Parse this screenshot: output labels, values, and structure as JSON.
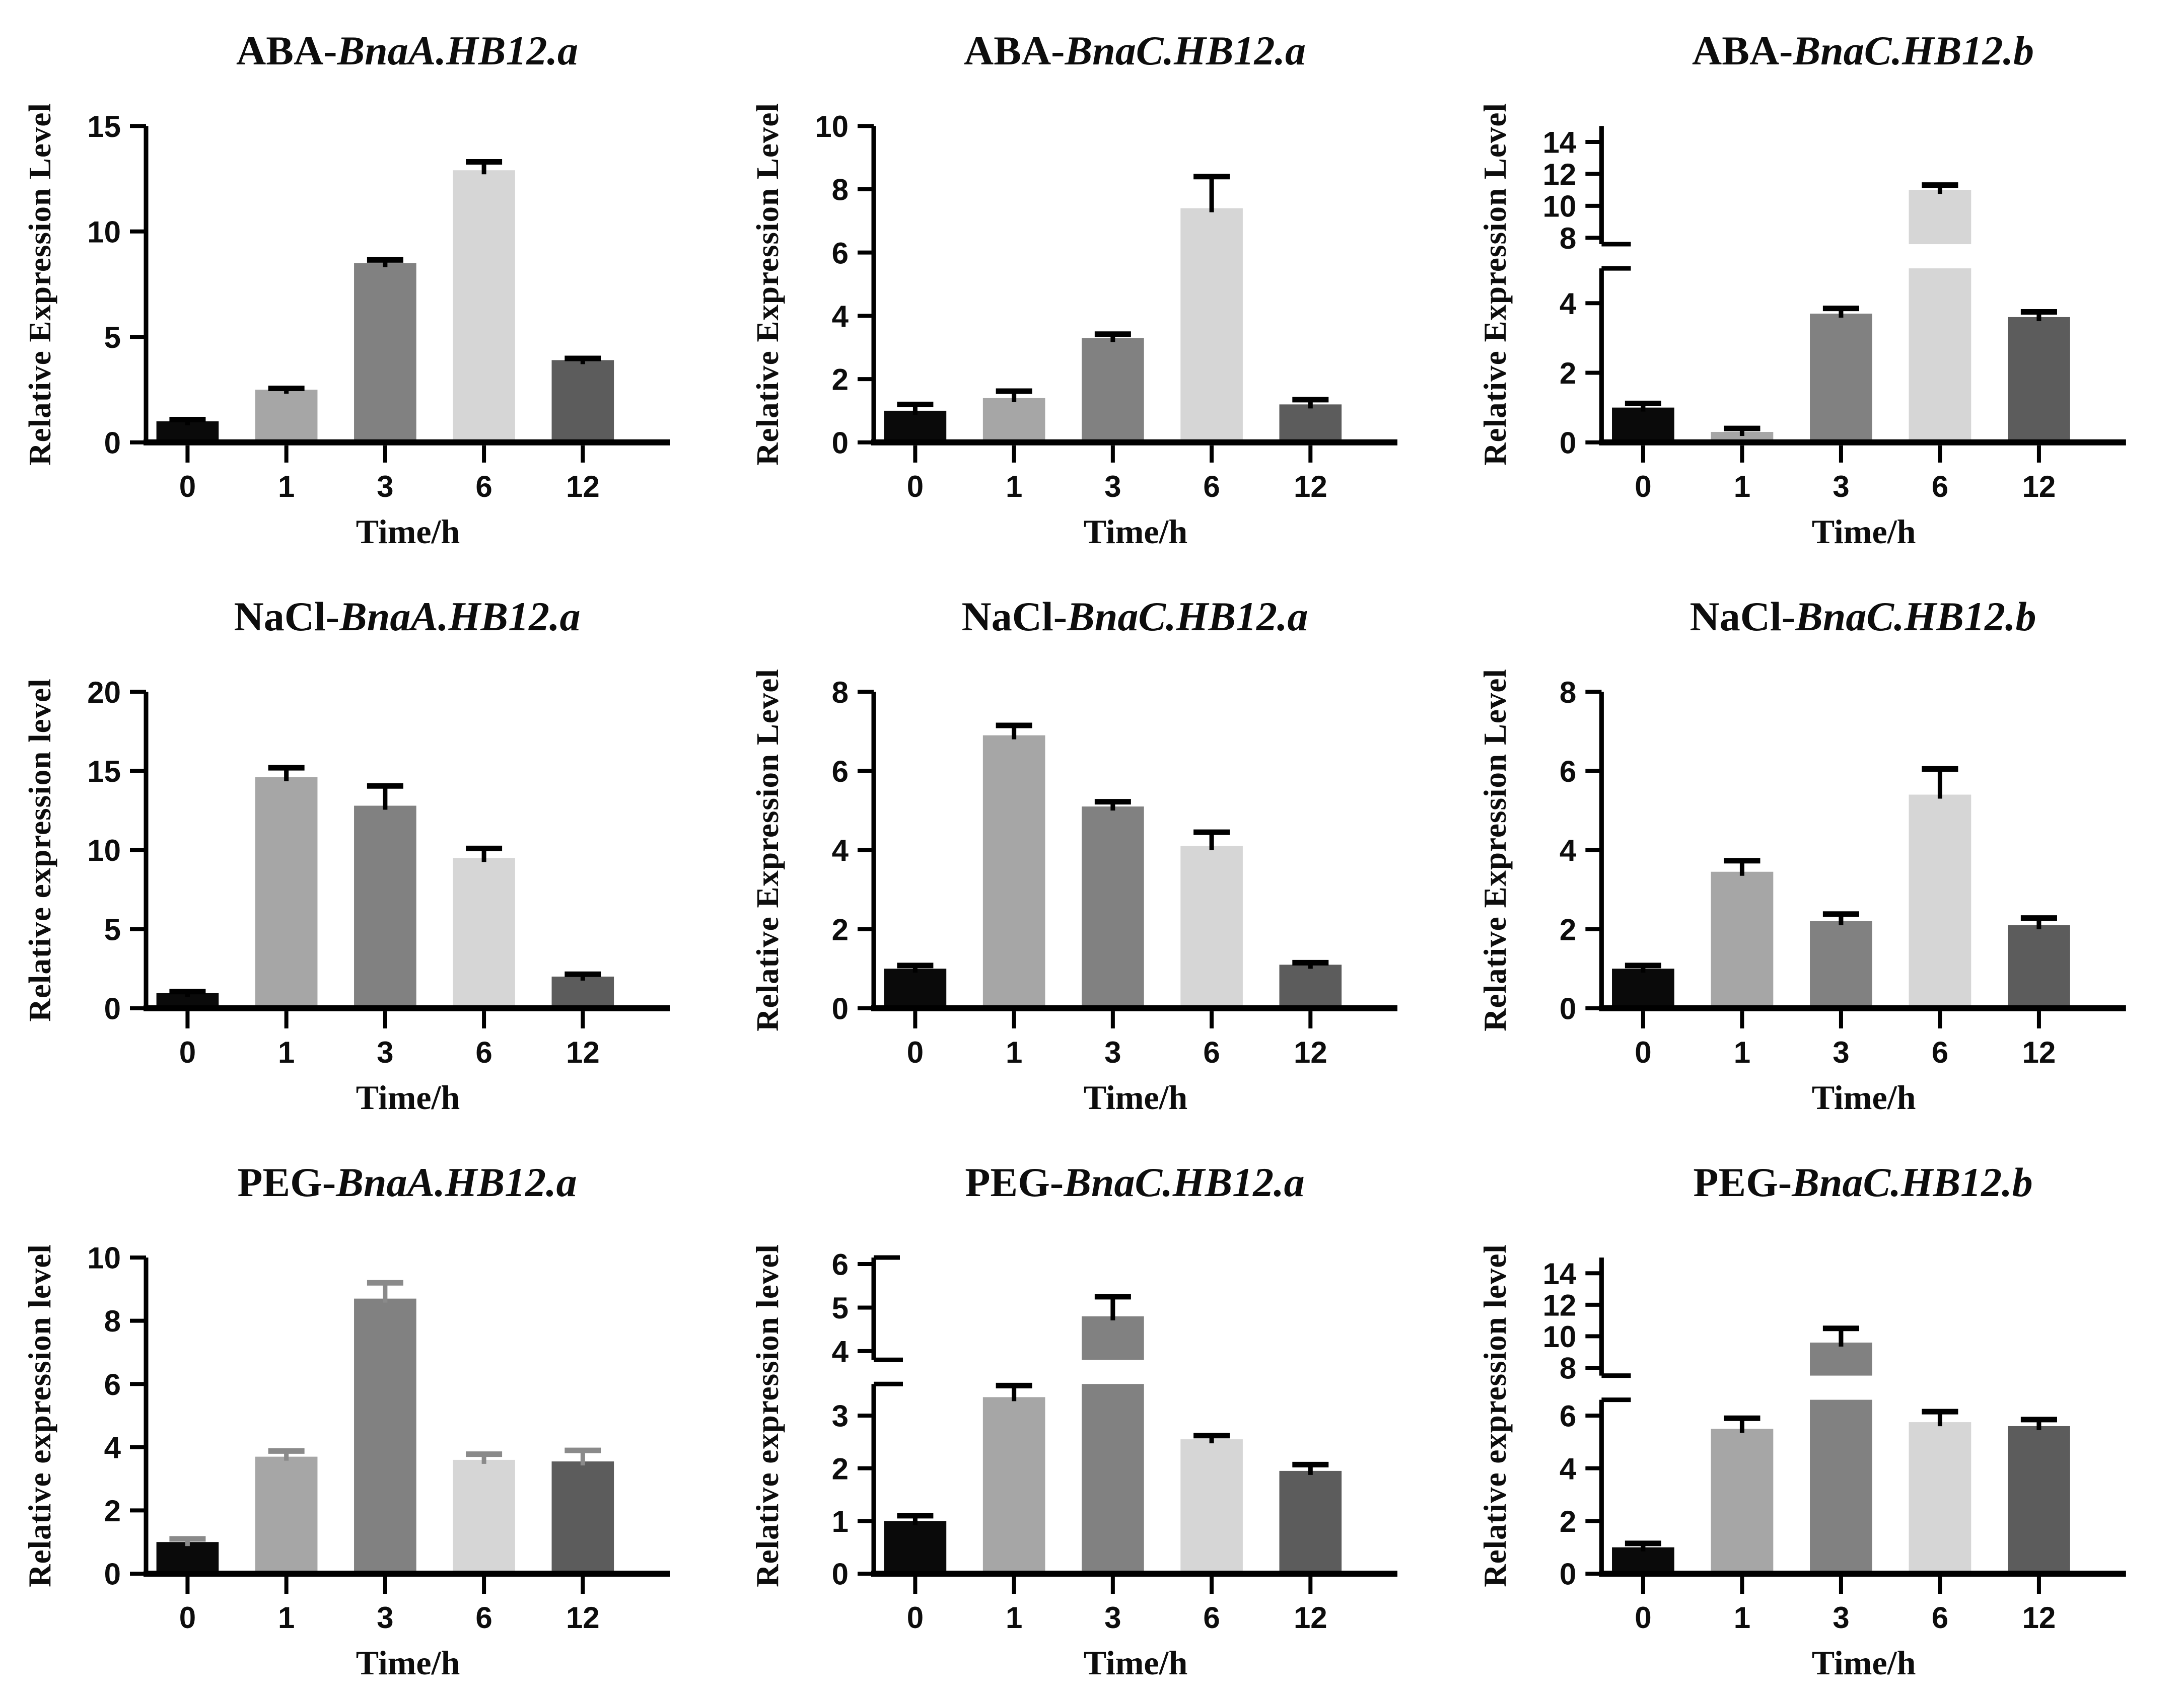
{
  "page": {
    "background": "#ffffff"
  },
  "bar_colors": [
    "#0a0a0a",
    "#a6a6a6",
    "#818181",
    "#d6d6d6",
    "#5c5c5c"
  ],
  "chart_data": [
    {
      "type": "bar",
      "id": "aba-bnaa-hb12-a",
      "title": "ABA-BnaA.HB12.a",
      "title_prefix": "ABA-",
      "title_gene": "BnaA.HB12.a",
      "ylabel": "Relative Expression Level",
      "xlabel": "Time/h",
      "categories": [
        "0",
        "1",
        "3",
        "6",
        "12"
      ],
      "values": [
        1.0,
        2.5,
        8.5,
        12.9,
        3.9
      ],
      "errors": [
        0.08,
        0.06,
        0.15,
        0.4,
        0.08
      ],
      "error_color": "#000000",
      "ylim": [
        0,
        15
      ],
      "grid": false,
      "legend": "none",
      "segments": [
        {
          "domain": [
            0,
            15
          ],
          "ticks": [
            0,
            5,
            10,
            15
          ],
          "frac": 1.0
        }
      ]
    },
    {
      "type": "bar",
      "id": "aba-bnac-hb12-a",
      "title": "ABA-BnaC.HB12.a",
      "title_prefix": "ABA-",
      "title_gene": "BnaC.HB12.a",
      "ylabel": "Relative Expression Level",
      "xlabel": "Time/h",
      "categories": [
        "0",
        "1",
        "3",
        "6",
        "12"
      ],
      "values": [
        1.0,
        1.4,
        3.3,
        7.4,
        1.2
      ],
      "errors": [
        0.2,
        0.22,
        0.12,
        1.0,
        0.15
      ],
      "error_color": "#000000",
      "ylim": [
        0,
        10
      ],
      "grid": false,
      "legend": "none",
      "segments": [
        {
          "domain": [
            0,
            10
          ],
          "ticks": [
            0,
            2,
            4,
            6,
            8,
            10
          ],
          "frac": 1.0
        }
      ]
    },
    {
      "type": "bar",
      "id": "aba-bnac-hb12-b",
      "title": "ABA-BnaC.HB12.b",
      "title_prefix": "ABA-",
      "title_gene": "BnaC.HB12.b",
      "ylabel": "Relative Expression Level",
      "xlabel": "Time/h",
      "categories": [
        "0",
        "1",
        "3",
        "6",
        "12"
      ],
      "values": [
        1.0,
        0.3,
        3.7,
        11.0,
        3.6
      ],
      "errors": [
        0.12,
        0.1,
        0.15,
        0.3,
        0.15
      ],
      "error_color": "#000000",
      "ylim": [
        0,
        15
      ],
      "grid": false,
      "legend": "none",
      "axis_break": true,
      "segments": [
        {
          "domain": [
            0,
            5
          ],
          "ticks": [
            0,
            2,
            4
          ],
          "frac": 0.55
        },
        {
          "domain": [
            7.6,
            15
          ],
          "ticks": [
            8,
            10,
            12,
            14
          ],
          "frac": 0.38
        }
      ]
    },
    {
      "type": "bar",
      "id": "nacl-bnaa-hb12-a",
      "title": "NaCl-BnaA.HB12.a",
      "title_prefix": "NaCl-",
      "title_gene": "BnaA.HB12.a",
      "ylabel": "Relative expression level",
      "xlabel": "Time/h",
      "categories": [
        "0",
        "1",
        "3",
        "6",
        "12"
      ],
      "values": [
        0.95,
        14.6,
        12.8,
        9.5,
        2.0
      ],
      "errors": [
        0.1,
        0.6,
        1.25,
        0.6,
        0.15
      ],
      "error_color": "#000000",
      "ylim": [
        0,
        20
      ],
      "grid": false,
      "legend": "none",
      "segments": [
        {
          "domain": [
            0,
            20
          ],
          "ticks": [
            0,
            5,
            10,
            15,
            20
          ],
          "frac": 1.0
        }
      ]
    },
    {
      "type": "bar",
      "id": "nacl-bnac-hb12-a",
      "title": "NaCl-BnaC.HB12.a",
      "title_prefix": "NaCl-",
      "title_gene": "BnaC.HB12.a",
      "ylabel": "Relative Expression Level",
      "xlabel": "Time/h",
      "categories": [
        "0",
        "1",
        "3",
        "6",
        "12"
      ],
      "values": [
        1.0,
        6.9,
        5.1,
        4.1,
        1.1
      ],
      "errors": [
        0.08,
        0.25,
        0.12,
        0.35,
        0.05
      ],
      "error_color": "#000000",
      "ylim": [
        0,
        8
      ],
      "grid": false,
      "legend": "none",
      "segments": [
        {
          "domain": [
            0,
            8
          ],
          "ticks": [
            0,
            2,
            4,
            6,
            8
          ],
          "frac": 1.0
        }
      ]
    },
    {
      "type": "bar",
      "id": "nacl-bnac-hb12-b",
      "title": "NaCl-BnaC.HB12.b",
      "title_prefix": "NaCl-",
      "title_gene": "BnaC.HB12.b",
      "ylabel": "Relative Expression Level",
      "xlabel": "Time/h",
      "categories": [
        "0",
        "1",
        "3",
        "6",
        "12"
      ],
      "values": [
        1.0,
        3.45,
        2.2,
        5.4,
        2.1
      ],
      "errors": [
        0.08,
        0.28,
        0.18,
        0.65,
        0.18
      ],
      "error_color": "#000000",
      "ylim": [
        0,
        8
      ],
      "grid": false,
      "legend": "none",
      "segments": [
        {
          "domain": [
            0,
            8
          ],
          "ticks": [
            0,
            2,
            4,
            6,
            8
          ],
          "frac": 1.0
        }
      ]
    },
    {
      "type": "bar",
      "id": "peg-bnaa-hb12-a",
      "title": "PEG-BnaA.HB12.a",
      "title_prefix": "PEG-",
      "title_gene": "BnaA.HB12.a",
      "ylabel": "Relative expression level",
      "xlabel": "Time/h",
      "categories": [
        "0",
        "1",
        "3",
        "6",
        "12"
      ],
      "values": [
        1.0,
        3.7,
        8.7,
        3.6,
        3.55
      ],
      "errors": [
        0.1,
        0.18,
        0.5,
        0.18,
        0.35
      ],
      "error_color": "#8a8a8a",
      "ylim": [
        0,
        10
      ],
      "grid": false,
      "legend": "none",
      "segments": [
        {
          "domain": [
            0,
            10
          ],
          "ticks": [
            0,
            2,
            4,
            6,
            8,
            10
          ],
          "frac": 1.0
        }
      ]
    },
    {
      "type": "bar",
      "id": "peg-bnac-hb12-a",
      "title": "PEG-BnaC.HB12.a",
      "title_prefix": "PEG-",
      "title_gene": "BnaC.HB12.a",
      "ylabel": "Relative expression level",
      "xlabel": "Time/h",
      "categories": [
        "0",
        "1",
        "3",
        "6",
        "12"
      ],
      "values": [
        1.0,
        3.35,
        4.8,
        2.55,
        1.95
      ],
      "errors": [
        0.1,
        0.22,
        0.45,
        0.07,
        0.12
      ],
      "error_color": "#000000",
      "ylim": [
        0,
        6
      ],
      "grid": false,
      "legend": "none",
      "axis_break": true,
      "top_cap": true,
      "segments": [
        {
          "domain": [
            0,
            3.6
          ],
          "ticks": [
            0,
            1,
            2,
            3
          ],
          "frac": 0.6
        },
        {
          "domain": [
            3.8,
            6.15
          ],
          "ticks": [
            4,
            5,
            6
          ],
          "frac": 0.34
        }
      ]
    },
    {
      "type": "bar",
      "id": "peg-bnac-hb12-b",
      "title": "PEG-BnaC.HB12.b",
      "title_prefix": "PEG-",
      "title_gene": "BnaC.HB12.b",
      "ylabel": "Relative expression level",
      "xlabel": "Time/h",
      "categories": [
        "0",
        "1",
        "3",
        "6",
        "12"
      ],
      "values": [
        1.0,
        5.5,
        9.6,
        5.75,
        5.6
      ],
      "errors": [
        0.15,
        0.4,
        0.9,
        0.4,
        0.25
      ],
      "error_color": "#000000",
      "ylim": [
        0,
        15
      ],
      "grid": false,
      "legend": "none",
      "axis_break": true,
      "segments": [
        {
          "domain": [
            0,
            6.6
          ],
          "ticks": [
            0,
            2,
            4,
            6
          ],
          "frac": 0.55
        },
        {
          "domain": [
            7.5,
            15
          ],
          "ticks": [
            8,
            10,
            12,
            14
          ],
          "frac": 0.38
        }
      ]
    }
  ]
}
